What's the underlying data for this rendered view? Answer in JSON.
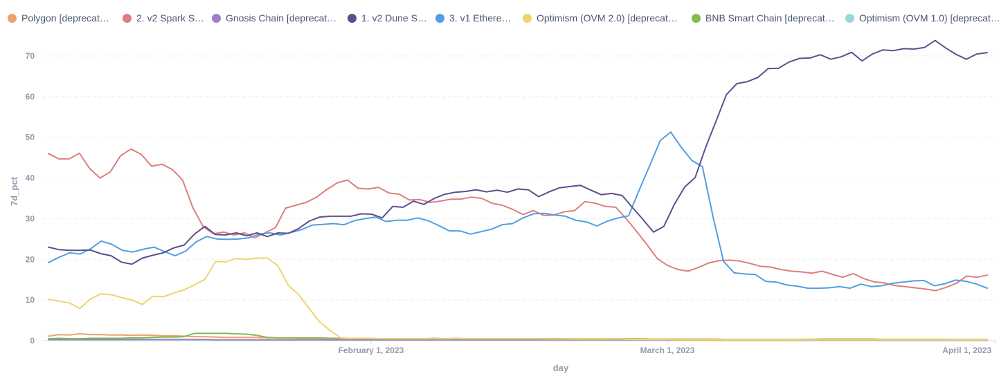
{
  "chart_data": {
    "type": "line",
    "xlabel": "day",
    "ylabel": "7d_pct",
    "ylim": [
      0,
      70
    ],
    "yticks": [
      0,
      10,
      20,
      30,
      40,
      50,
      60,
      70
    ],
    "xlim": [
      "2023-01-01",
      "2023-04-01"
    ],
    "xticks": [
      {
        "date": "2023-02-01",
        "label": "February 1, 2023"
      },
      {
        "date": "2023-03-01",
        "label": "March 1, 2023"
      },
      {
        "date": "2023-04-01",
        "label": "April 1, 2023"
      }
    ],
    "grid": "horizontal dashed",
    "legend": "top",
    "series": [
      {
        "name": "Polygon [deprecat…",
        "color": "#e8a46f",
        "values": [
          1.1,
          1.5,
          1.4,
          1.7,
          1.5,
          1.5,
          1.4,
          1.4,
          1.3,
          1.4,
          1.3,
          1.2,
          1.2,
          1.1,
          1.0,
          1.0,
          0.9,
          0.8,
          0.8,
          0.8,
          0.8,
          0.7,
          0.7,
          0.7,
          0.6,
          0.6,
          0.6,
          0.6,
          0.6,
          0.6,
          0.5,
          0.5,
          0.5,
          0.5,
          0.5,
          0.5,
          0.5,
          0.5,
          0.5,
          0.6,
          0.5,
          0.5,
          0.5,
          0.5,
          0.5,
          0.5,
          0.5,
          0.5,
          0.5,
          0.5,
          0.5,
          0.5,
          0.5,
          0.5,
          0.5,
          0.5,
          0.5,
          0.5,
          0.4,
          0.4,
          0.4,
          0.4,
          0.4,
          0.4,
          0.4,
          0.3,
          0.3,
          0.3,
          0.3,
          0.3,
          0.3,
          0.3,
          0.3,
          0.3,
          0.3,
          0.3,
          0.3,
          0.3,
          0.3,
          0.3,
          0.3,
          0.3,
          0.3,
          0.3,
          0.3,
          0.3,
          0.3,
          0.3,
          0.3,
          0.3,
          0.3
        ]
      },
      {
        "name": "2. v2 Spark S…",
        "color": "#de7d7d",
        "values": [
          46,
          44.7,
          44.7,
          46.1,
          42.3,
          40.0,
          41.5,
          45.5,
          47.1,
          45.8,
          42.9,
          43.4,
          42.1,
          39.5,
          32.7,
          28.0,
          26.3,
          26.7,
          26.0,
          26.5,
          25.3,
          26.5,
          27.8,
          32.6,
          33.3,
          34.0,
          35.3,
          37.2,
          38.8,
          39.5,
          37.5,
          37.3,
          37.7,
          36.3,
          36.0,
          34.6,
          34.7,
          34.0,
          34.3,
          34.8,
          34.8,
          35.3,
          35.0,
          33.8,
          33.3,
          32.3,
          31.0,
          32.0,
          30.8,
          30.9,
          31.7,
          32.0,
          34.2,
          33.8,
          33.0,
          32.8,
          30.0,
          26.9,
          23.7,
          20.2,
          18.5,
          17.5,
          17.1,
          18.0,
          19.1,
          19.7,
          19.8,
          19.6,
          19.0,
          18.3,
          18.1,
          17.5,
          17.1,
          16.9,
          16.6,
          17.1,
          16.3,
          15.6,
          16.5,
          15.3,
          14.5,
          14.2,
          13.6,
          13.3,
          13.0,
          12.7,
          12.3,
          13.1,
          14.1,
          15.9,
          15.6,
          16.1
        ]
      },
      {
        "name": "Gnosis Chain [deprecat…",
        "color": "#a77dc2",
        "values": [
          0.3,
          0.3,
          0.3,
          0.3,
          0.3,
          0.3,
          0.3,
          0.3,
          0.3,
          0.3,
          0.3,
          0.3,
          0.3,
          0.3,
          0.3,
          0.3,
          0.2,
          0.2,
          0.2,
          0.2,
          0.2,
          0.2,
          0.2,
          0.2,
          0.2,
          0.2,
          0.2,
          0.2,
          0.2,
          0.2,
          0.2,
          0.2,
          0.2,
          0.2,
          0.2,
          0.2,
          0.2,
          0.2,
          0.2,
          0.2,
          0.2,
          0.2,
          0.2,
          0.2,
          0.2,
          0.2,
          0.2,
          0.2,
          0.2,
          0.2,
          0.2,
          0.2,
          0.2,
          0.2,
          0.2,
          0.2,
          0.2,
          0.2,
          0.2,
          0.2,
          0.1,
          0.1,
          0.1,
          0.1,
          0.1,
          0.1,
          0.1,
          0.1,
          0.1,
          0.1,
          0.1,
          0.1,
          0.1,
          0.1,
          0.1,
          0.1,
          0.1,
          0.1,
          0.1,
          0.1,
          0.1,
          0.1,
          0.1,
          0.1,
          0.1,
          0.1,
          0.1,
          0.1,
          0.1,
          0.1,
          0.1
        ]
      },
      {
        "name": "1. v2 Dune S…",
        "color": "#5b4f8f",
        "values": [
          23.0,
          22.4,
          22.2,
          22.2,
          22.3,
          21.4,
          20.9,
          19.3,
          18.8,
          20.3,
          21.0,
          21.6,
          22.8,
          23.5,
          26.2,
          28.1,
          26.1,
          26.0,
          26.5,
          25.8,
          26.5,
          25.6,
          26.5,
          26.4,
          27.6,
          29.4,
          30.4,
          30.6,
          30.6,
          30.6,
          31.2,
          31.1,
          30.2,
          33.0,
          32.8,
          34.3,
          33.5,
          35.0,
          36.0,
          36.5,
          36.7,
          37.1,
          36.6,
          37.0,
          36.5,
          37.3,
          37.1,
          35.4,
          36.6,
          37.6,
          37.9,
          38.2,
          37.0,
          35.9,
          36.2,
          35.7,
          32.7,
          29.8,
          26.7,
          28.1,
          33.5,
          37.8,
          40.1,
          47.5,
          54.0,
          60.5,
          63.2,
          63.7,
          64.7,
          66.9,
          67.0,
          68.5,
          69.4,
          69.5,
          70.3,
          69.2,
          69.8,
          70.9,
          68.8,
          70.5,
          71.5,
          71.3,
          71.8,
          71.7,
          72.1,
          73.8,
          72.0,
          70.4,
          69.2,
          70.5,
          70.8
        ]
      },
      {
        "name": "3. v1 Ethere…",
        "color": "#509ee3",
        "values": [
          19.2,
          20.5,
          21.6,
          21.3,
          22.6,
          24.5,
          23.7,
          22.2,
          21.8,
          22.5,
          23.0,
          21.9,
          20.9,
          22.0,
          24.3,
          25.6,
          25.0,
          24.9,
          25.0,
          25.3,
          26.2,
          26.5,
          26.0,
          26.6,
          27.3,
          28.4,
          28.6,
          28.8,
          28.5,
          29.5,
          30.0,
          30.4,
          29.3,
          29.6,
          29.6,
          30.2,
          29.5,
          28.3,
          27.0,
          27.0,
          26.2,
          26.8,
          27.4,
          28.5,
          28.8,
          30.2,
          31.2,
          31.3,
          30.9,
          30.6,
          29.6,
          29.2,
          28.2,
          29.4,
          30.2,
          30.7,
          37.0,
          43.0,
          49.2,
          51.3,
          47.5,
          44.3,
          42.8,
          30.5,
          19.5,
          16.7,
          16.4,
          16.3,
          14.6,
          14.4,
          13.7,
          13.4,
          12.9,
          12.9,
          13.0,
          13.3,
          12.9,
          13.9,
          13.3,
          13.5,
          14.1,
          14.4,
          14.7,
          14.8,
          13.5,
          14.0,
          14.9,
          14.6,
          13.9,
          12.9
        ]
      },
      {
        "name": "Optimism (OVM 2.0) [deprecat…",
        "color": "#f0d36e",
        "values": [
          10.2,
          9.7,
          9.3,
          7.9,
          10.2,
          11.5,
          11.3,
          10.6,
          10.0,
          8.9,
          10.9,
          10.8,
          11.7,
          12.5,
          13.7,
          15.1,
          19.4,
          19.4,
          20.2,
          20.0,
          20.3,
          20.3,
          18.4,
          13.6,
          11.3,
          7.9,
          4.6,
          2.5,
          0.7,
          0.6,
          0.6,
          0.6,
          0.5,
          0.5,
          0.5,
          0.5,
          0.5,
          0.5,
          0.5,
          0.5,
          0.5,
          0.5,
          0.5,
          0.5,
          0.5,
          0.5,
          0.5,
          0.5,
          0.4,
          0.4,
          0.4,
          0.4,
          0.4,
          0.4,
          0.4,
          0.4,
          0.3,
          0.3,
          0.3,
          0.3,
          0.2,
          0.2,
          0.2,
          0.2,
          0.2,
          0.2,
          0.2,
          0.2,
          0.2,
          0.2,
          0.2,
          0.2,
          0.2,
          0.2,
          0.2,
          0.2,
          0.2,
          0.2,
          0.2,
          0.2,
          0.2,
          0.2,
          0.2,
          0.2,
          0.2,
          0.2,
          0.2,
          0.2,
          0.2,
          0.2,
          0.2
        ]
      },
      {
        "name": "BNB Smart Chain [deprecat…",
        "color": "#84bb4c",
        "values": [
          0.5,
          0.6,
          0.5,
          0.5,
          0.6,
          0.6,
          0.6,
          0.6,
          0.7,
          0.7,
          0.8,
          0.9,
          0.9,
          1.0,
          1.8,
          1.8,
          1.8,
          1.8,
          1.7,
          1.6,
          1.3,
          0.8,
          0.7,
          0.7,
          0.7,
          0.7,
          0.7,
          0.6,
          0.6,
          0.6,
          0.5,
          0.5,
          0.5,
          0.5,
          0.5,
          0.5,
          0.5,
          0.6,
          0.5,
          0.5,
          0.5,
          0.5,
          0.5,
          0.5,
          0.5,
          0.5,
          0.5,
          0.5,
          0.5,
          0.5,
          0.4,
          0.3,
          0.3,
          0.3,
          0.4,
          0.4,
          0.4,
          0.3,
          0.3,
          0.3,
          0.2,
          0.1,
          0.1,
          0.1,
          0.1,
          0.1,
          0.1,
          0.1,
          0.1,
          0.1,
          0.1,
          0.1,
          0.3,
          0.3,
          0.4,
          0.4,
          0.4,
          0.4,
          0.4,
          0.4,
          0.3,
          0.3,
          0.3,
          0.3,
          0.3,
          0.3,
          0.3,
          0.2,
          0.2,
          0.2,
          0.2
        ]
      },
      {
        "name": "Optimism (OVM 1.0) [deprecat…",
        "color": "#98d9d9",
        "values": [
          0.1,
          0.1,
          0.1,
          0.1,
          0.1,
          0.1,
          0.1,
          0.1,
          0.1,
          0.1,
          0.1,
          0.1,
          0.1,
          0.1,
          0.1,
          0.1,
          0.1,
          0.1,
          0.1,
          0.1,
          0.1,
          0.1,
          0.1,
          0.1,
          0.1,
          0.1,
          0.1,
          0.1,
          0.1,
          0.1,
          0.1,
          0.1,
          0.1,
          0.1,
          0.1,
          0.1,
          0.1,
          0.1,
          0.1,
          0.1,
          0.1,
          0.1,
          0.1,
          0.1,
          0.1,
          0.1,
          0.1,
          0.1,
          0.1,
          0.1,
          0.1,
          0.1,
          0.1,
          0.1,
          0.1,
          0.1,
          0.1,
          0.1,
          0.1,
          0.1,
          0.1,
          0.1,
          0.1,
          0.1,
          0.1,
          0.1,
          0.1,
          0.1,
          0.1,
          0.1,
          0.1,
          0.1,
          0.1,
          0.1,
          0.1,
          0.1,
          0.1,
          0.1,
          0.1,
          0.1,
          0.1,
          0.1,
          0.1,
          0.1,
          0.1,
          0.1,
          0.1,
          0.1,
          0.1,
          0.1,
          0.1
        ]
      }
    ]
  }
}
